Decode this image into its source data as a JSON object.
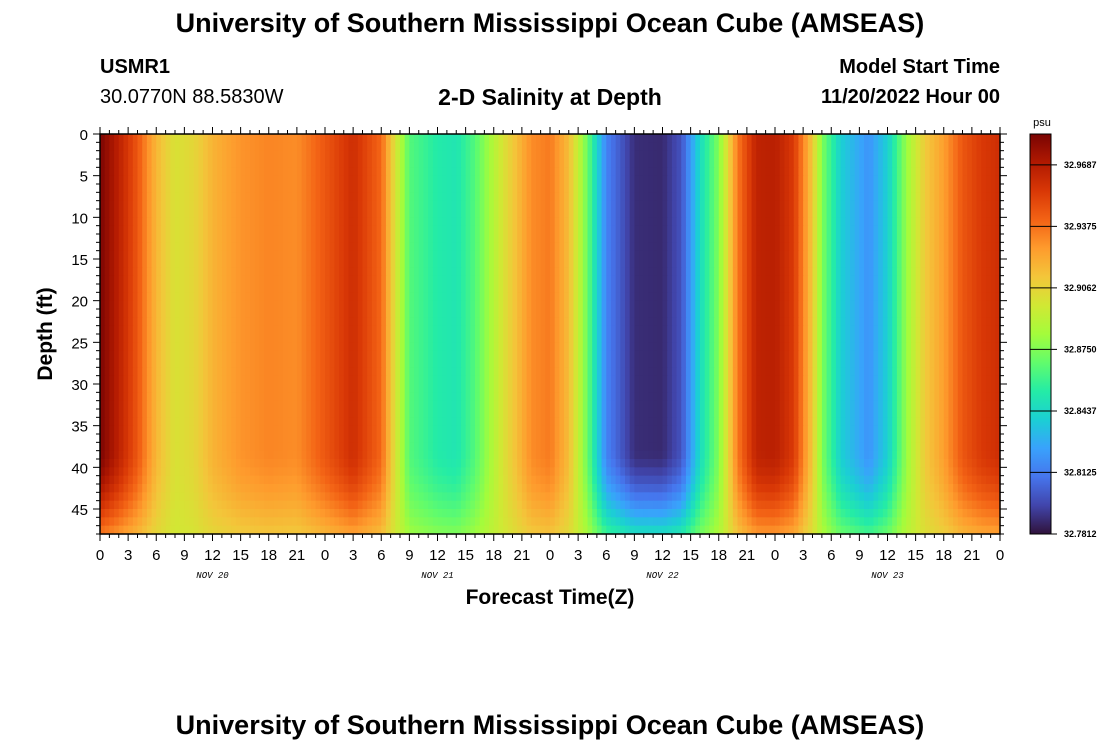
{
  "header": {
    "title": "University of Southern Mississippi Ocean Cube (AMSEAS)",
    "station_id": "USMR1",
    "coordinates": "30.0770N  88.5830W",
    "subtitle": "2-D Salinity at Depth",
    "model_start_label": "Model Start Time",
    "model_start_value": "11/20/2022 Hour 00"
  },
  "footer": {
    "title": "University of Southern Mississippi Ocean Cube (AMSEAS)"
  },
  "chart_data": {
    "type": "heatmap",
    "title": "2-D Salinity at Depth",
    "xlabel": "Forecast Time(Z)",
    "ylabel": "Depth (ft)",
    "x_tick_labels": [
      "0",
      "3",
      "6",
      "9",
      "12",
      "15",
      "18",
      "21",
      "0",
      "3",
      "6",
      "9",
      "12",
      "15",
      "18",
      "21",
      "0",
      "3",
      "6",
      "9",
      "12",
      "15",
      "18",
      "21",
      "0",
      "3",
      "6",
      "9",
      "12",
      "15",
      "18",
      "21",
      "0"
    ],
    "day_labels": [
      "NOV 20",
      "NOV 21",
      "NOV 22",
      "NOV 23"
    ],
    "y_tick_labels": [
      "0",
      "5",
      "10",
      "15",
      "20",
      "25",
      "30",
      "35",
      "40",
      "45"
    ],
    "y_ticks": [
      0,
      5,
      10,
      15,
      20,
      25,
      30,
      35,
      40,
      45
    ],
    "ylim": [
      0,
      48
    ],
    "xlim_hours": [
      0,
      96
    ],
    "colorbar": {
      "unit": "psu",
      "min": 32.7812,
      "max": 32.9844,
      "tick_labels": [
        "32.9687",
        "32.9375",
        "32.9062",
        "32.8750",
        "32.8437",
        "32.8125",
        "32.7812"
      ],
      "tick_values": [
        32.9687,
        32.9375,
        32.9062,
        32.875,
        32.8437,
        32.8125,
        32.7812
      ]
    },
    "surface_salinity_by_hour": [
      {
        "hour": 0,
        "value": 32.984
      },
      {
        "hour": 2,
        "value": 32.966
      },
      {
        "hour": 4,
        "value": 32.945
      },
      {
        "hour": 6,
        "value": 32.917
      },
      {
        "hour": 8,
        "value": 32.9
      },
      {
        "hour": 10,
        "value": 32.905
      },
      {
        "hour": 12,
        "value": 32.918
      },
      {
        "hour": 15,
        "value": 32.928
      },
      {
        "hour": 18,
        "value": 32.932
      },
      {
        "hour": 21,
        "value": 32.93
      },
      {
        "hour": 24,
        "value": 32.945
      },
      {
        "hour": 27,
        "value": 32.96
      },
      {
        "hour": 30,
        "value": 32.94
      },
      {
        "hour": 31.5,
        "value": 32.9
      },
      {
        "hour": 33,
        "value": 32.865
      },
      {
        "hour": 36,
        "value": 32.853
      },
      {
        "hour": 38,
        "value": 32.85
      },
      {
        "hour": 40,
        "value": 32.865
      },
      {
        "hour": 43,
        "value": 32.9
      },
      {
        "hour": 46,
        "value": 32.93
      },
      {
        "hour": 48,
        "value": 32.935
      },
      {
        "hour": 50,
        "value": 32.915
      },
      {
        "hour": 52,
        "value": 32.87
      },
      {
        "hour": 54,
        "value": 32.815
      },
      {
        "hour": 57,
        "value": 32.789
      },
      {
        "hour": 60,
        "value": 32.788
      },
      {
        "hour": 62,
        "value": 32.8
      },
      {
        "hour": 64,
        "value": 32.845
      },
      {
        "hour": 66,
        "value": 32.875
      },
      {
        "hour": 68,
        "value": 32.935
      },
      {
        "hour": 70,
        "value": 32.965
      },
      {
        "hour": 72,
        "value": 32.967
      },
      {
        "hour": 74,
        "value": 32.955
      },
      {
        "hour": 76,
        "value": 32.91
      },
      {
        "hour": 77,
        "value": 32.875
      },
      {
        "hour": 79,
        "value": 32.84
      },
      {
        "hour": 82,
        "value": 32.82
      },
      {
        "hour": 84,
        "value": 32.84
      },
      {
        "hour": 86,
        "value": 32.88
      },
      {
        "hour": 88,
        "value": 32.91
      },
      {
        "hour": 90,
        "value": 32.925
      },
      {
        "hour": 92,
        "value": 32.945
      },
      {
        "hour": 94,
        "value": 32.955
      },
      {
        "hour": 96,
        "value": 32.96
      }
    ],
    "deep_adjustment_start_depth": 38,
    "deep_adjustment_note": "values converge toward ~32.89 near bottom (48 ft)"
  },
  "colors": {
    "colormap": [
      "#30123b",
      "#4145ab",
      "#4675ed",
      "#39a2fc",
      "#1bcfd4",
      "#24eca6",
      "#61fc6c",
      "#a4fc3b",
      "#d1e834",
      "#f3c63a",
      "#fe9b2d",
      "#f36315",
      "#d93806",
      "#b11901",
      "#7a0403"
    ]
  }
}
